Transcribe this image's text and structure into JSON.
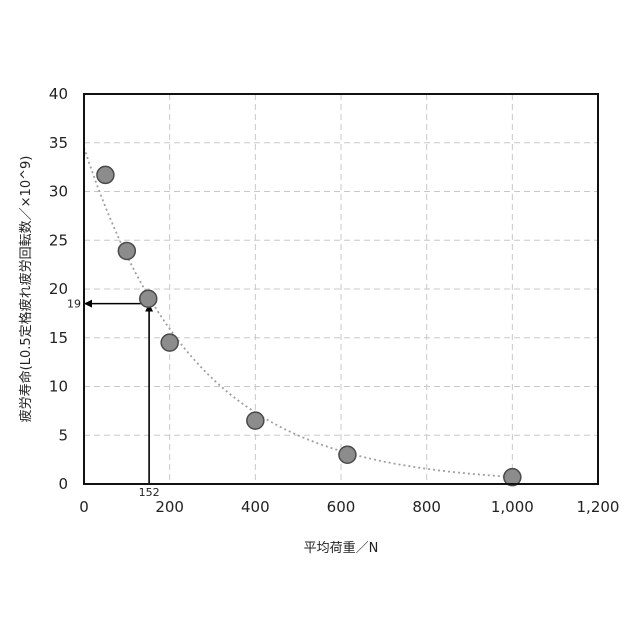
{
  "chart_data": {
    "type": "scatter",
    "xlabel": "平均荷重／N",
    "ylabel": "疲労寿命(L0.5定格疲れ疲労回転数／×10^9)",
    "xlim": [
      0,
      1200
    ],
    "ylim": [
      0,
      40
    ],
    "x_ticks": [
      0,
      200,
      400,
      600,
      800,
      1000,
      1200
    ],
    "x_tick_labels": [
      "0",
      "200",
      "400",
      "600",
      "800",
      "1,000",
      "1,200"
    ],
    "y_ticks": [
      0,
      5,
      10,
      15,
      20,
      25,
      30,
      35,
      40
    ],
    "y_tick_labels": [
      "0",
      "5",
      "10",
      "15",
      "20",
      "25",
      "30",
      "35",
      "40"
    ],
    "grid": true,
    "series": [
      {
        "x": [
          50,
          100,
          150,
          200,
          400,
          615,
          1000
        ],
        "y": [
          31.7,
          23.9,
          19.0,
          14.5,
          6.5,
          3.0,
          0.7
        ]
      }
    ],
    "trendline": {
      "type": "exponential",
      "a": 34.5,
      "b": 0.00387
    },
    "annotations": [
      {
        "label": "19",
        "x": 152,
        "y": 18.5,
        "direction": "to-y-axis"
      },
      {
        "label": "152",
        "x": 152,
        "y": 18.5,
        "direction": "to-x-axis"
      }
    ]
  }
}
